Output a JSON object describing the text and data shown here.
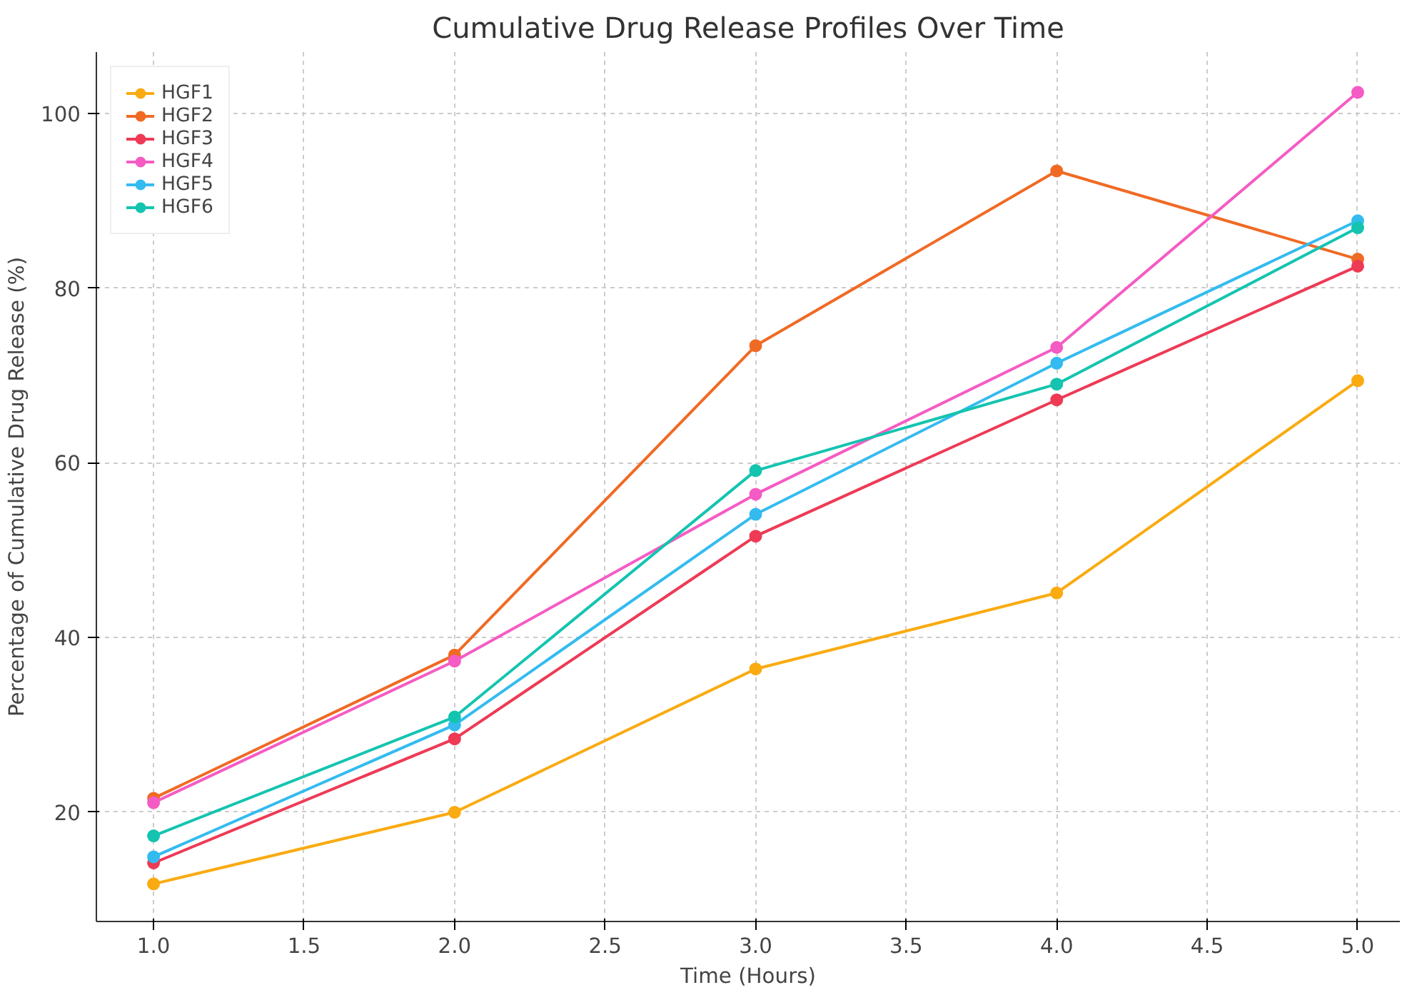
{
  "chart_data": {
    "type": "line",
    "title": "Cumulative Drug Release Profiles Over Time",
    "xlabel": "Time (Hours)",
    "ylabel": "Percentage of Cumulative Drug Release (%)",
    "x": [
      1,
      2,
      3,
      4,
      5
    ],
    "series": [
      {
        "name": "HGF1",
        "color": "#f9ab11",
        "values": [
          11.8,
          20.0,
          36.4,
          45.1,
          69.4
        ]
      },
      {
        "name": "HGF2",
        "color": "#f06a24",
        "values": [
          21.6,
          38.0,
          73.4,
          93.4,
          83.3
        ]
      },
      {
        "name": "HGF3",
        "color": "#ee3a55",
        "values": [
          14.2,
          28.4,
          51.6,
          67.2,
          82.5
        ]
      },
      {
        "name": "HGF4",
        "color": "#f55bc4",
        "values": [
          21.1,
          37.3,
          56.4,
          73.2,
          102.4
        ]
      },
      {
        "name": "HGF5",
        "color": "#33bbf0",
        "values": [
          14.9,
          30.0,
          54.1,
          71.4,
          87.7
        ]
      },
      {
        "name": "HGF6",
        "color": "#14c4b0",
        "values": [
          17.3,
          30.9,
          59.1,
          69.0,
          86.9
        ]
      }
    ],
    "xlim": [
      0.81,
      5.14
    ],
    "ylim": [
      7.5,
      107
    ],
    "xticks": [
      {
        "value": 1,
        "label": "1.0"
      },
      {
        "value": 1.5,
        "label": "1.5"
      },
      {
        "value": 2,
        "label": "2.0"
      },
      {
        "value": 2.5,
        "label": "2.5"
      },
      {
        "value": 3,
        "label": "3.0"
      },
      {
        "value": 3.5,
        "label": "3.5"
      },
      {
        "value": 4,
        "label": "4.0"
      },
      {
        "value": 4.5,
        "label": "4.5"
      },
      {
        "value": 5,
        "label": "5.0"
      }
    ],
    "yticks": [
      20,
      40,
      60,
      80,
      100
    ],
    "grid": true,
    "legend": "top left",
    "marker": "circle",
    "line_style": "solid"
  }
}
